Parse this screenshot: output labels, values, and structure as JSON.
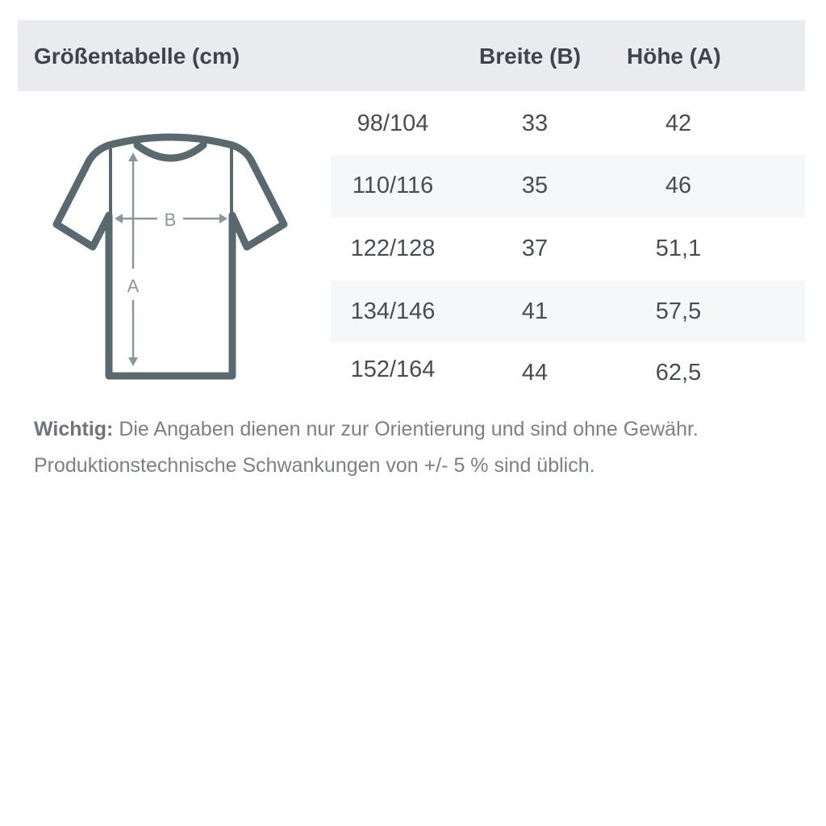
{
  "header": {
    "title": "Größentabelle (cm)",
    "col_width": "Breite (B)",
    "col_height": "Höhe (A)"
  },
  "diagram": {
    "label_width": "B",
    "label_height": "A",
    "outline_color": "#5a6970",
    "arrow_color": "#8a969d"
  },
  "rows": [
    {
      "size": "98/104",
      "width": "33",
      "height": "42"
    },
    {
      "size": "110/116",
      "width": "35",
      "height": "46"
    },
    {
      "size": "122/128",
      "width": "37",
      "height": "51,1"
    },
    {
      "size": "134/146",
      "width": "41",
      "height": "57,5"
    },
    {
      "size": "152/164",
      "width": "44",
      "height": "62,5"
    }
  ],
  "note": {
    "label": "Wichtig:",
    "line1": " Die Angaben dienen nur zur Orientierung und sind ohne Gewähr.",
    "line2": "Produktionstechnische Schwankungen von +/- 5 % sind üblich."
  }
}
